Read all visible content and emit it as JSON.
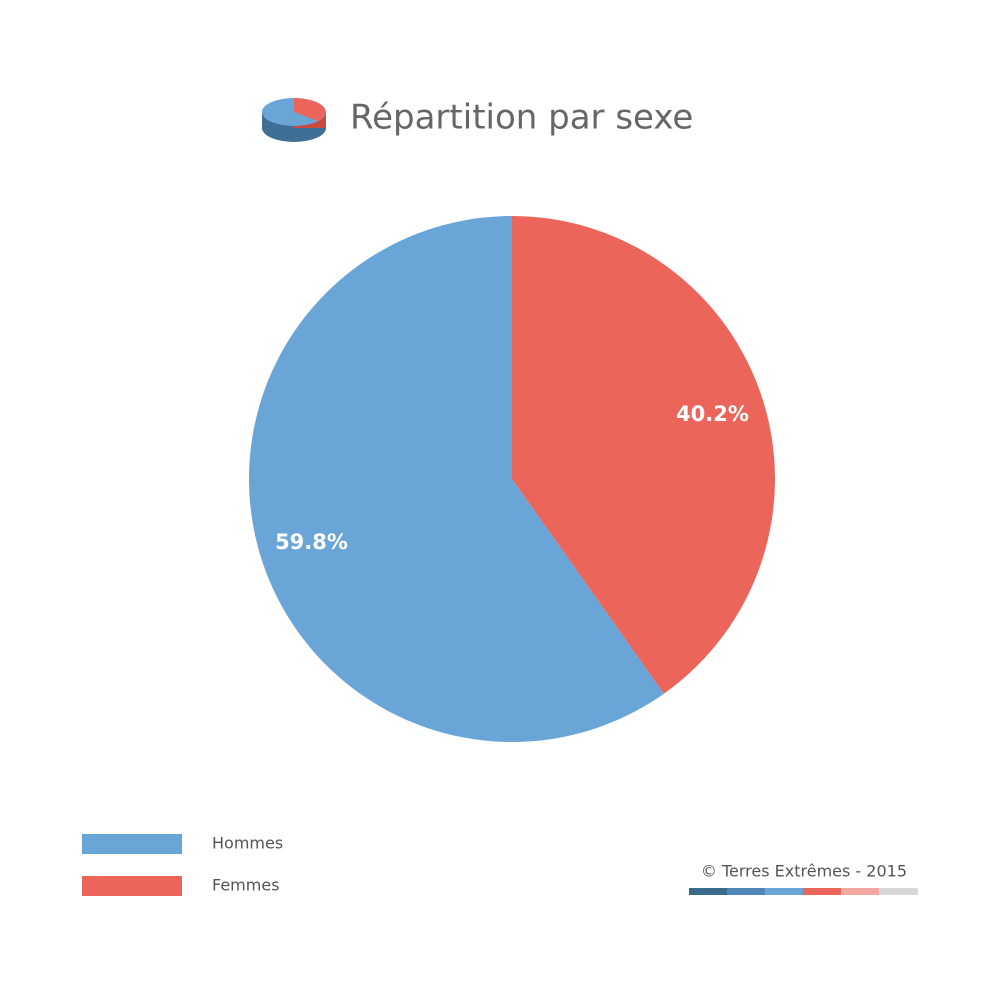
{
  "chart_data": {
    "type": "pie",
    "title": "Répartition par sexe",
    "categories": [
      "Hommes",
      "Femmes"
    ],
    "values": [
      59.8,
      40.2
    ],
    "value_labels": [
      "59.8%",
      "40.2%"
    ],
    "colors": [
      "#6aa5d8",
      "#ec655a"
    ],
    "credit": "© Terres Extrêmes - 2015"
  }
}
